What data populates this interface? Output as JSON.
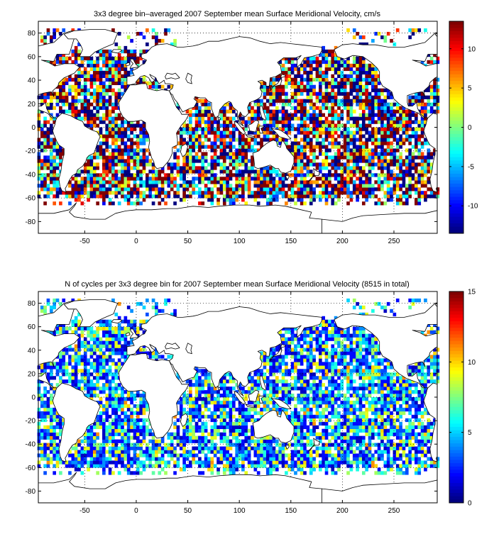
{
  "chart_data": [
    {
      "type": "heatmap",
      "title": "3x3 degree bin–averaged 2007 September mean Surface Meridional Velocity, cm/s",
      "xlabel": "",
      "ylabel": "",
      "xlim": [
        -95,
        292
      ],
      "ylim": [
        -90,
        90
      ],
      "x_ticks": [
        -50,
        0,
        50,
        100,
        150,
        200,
        250
      ],
      "y_ticks": [
        -80,
        -60,
        -40,
        -20,
        0,
        20,
        40,
        60,
        80
      ],
      "x_tick_labels": [
        "-50",
        "0",
        "50",
        "100",
        "150",
        "200",
        "250"
      ],
      "y_tick_labels": [
        "-80",
        "-60",
        "-40",
        "-20",
        "0",
        "20",
        "40",
        "60",
        "80"
      ],
      "grid": "dotted",
      "colorbar": {
        "min": -13.5,
        "max": 13.5,
        "ticks": [
          -10,
          -5,
          0,
          5,
          10
        ],
        "tick_labels": [
          "-10",
          "-5",
          "0",
          "5",
          "10"
        ],
        "colormap": "jet",
        "position": "right"
      },
      "bin_size_deg": 3
    },
    {
      "type": "heatmap",
      "title": "N of cycles per 3x3 degree bin for 2007 September mean Surface Meridional Velocity (8515 in total)",
      "xlabel": "",
      "ylabel": "",
      "total_cycles": 8515,
      "xlim": [
        -95,
        292
      ],
      "ylim": [
        -90,
        90
      ],
      "x_ticks": [
        -50,
        0,
        50,
        100,
        150,
        200,
        250
      ],
      "y_ticks": [
        -80,
        -60,
        -40,
        -20,
        0,
        20,
        40,
        60,
        80
      ],
      "x_tick_labels": [
        "-50",
        "0",
        "50",
        "100",
        "150",
        "200",
        "250"
      ],
      "y_tick_labels": [
        "-80",
        "-60",
        "-40",
        "-20",
        "0",
        "20",
        "40",
        "60",
        "80"
      ],
      "grid": "dotted",
      "colorbar": {
        "min": 0,
        "max": 15,
        "ticks": [
          0,
          5,
          10,
          15
        ],
        "tick_labels": [
          "0",
          "5",
          "10",
          "15"
        ],
        "colormap": "jet",
        "position": "right"
      },
      "bin_size_deg": 3
    }
  ]
}
